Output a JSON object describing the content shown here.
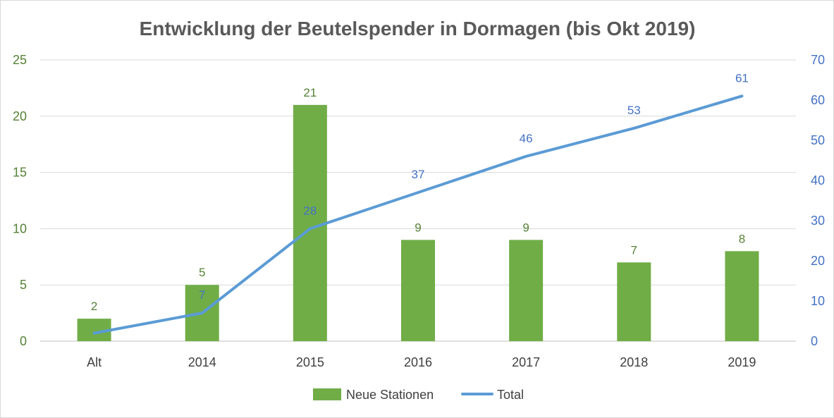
{
  "chart_data": {
    "type": "bar",
    "title": "Entwicklung der Beutelspender in Dormagen (bis Okt 2019)",
    "categories": [
      "Alt",
      "2014",
      "2015",
      "2016",
      "2017",
      "2018",
      "2019"
    ],
    "series": [
      {
        "name": "Neue Stationen",
        "type": "bar",
        "axis": "left",
        "color": "#70ad47",
        "label_color": "#548235",
        "values": [
          2,
          5,
          21,
          9,
          9,
          7,
          8
        ]
      },
      {
        "name": "Total",
        "type": "line",
        "axis": "right",
        "color": "#5b9bd5",
        "label_color": "#4472c4",
        "values": [
          2,
          7,
          28,
          37,
          46,
          53,
          61
        ]
      }
    ],
    "ylim_left": [
      0,
      25
    ],
    "yticks_left": [
      "0",
      "5",
      "10",
      "15",
      "20",
      "25"
    ],
    "ylim_right": [
      0,
      70
    ],
    "yticks_right": [
      "0",
      "10",
      "20",
      "30",
      "40",
      "50",
      "60",
      "70"
    ],
    "grid": true,
    "legend_position": "bottom"
  }
}
